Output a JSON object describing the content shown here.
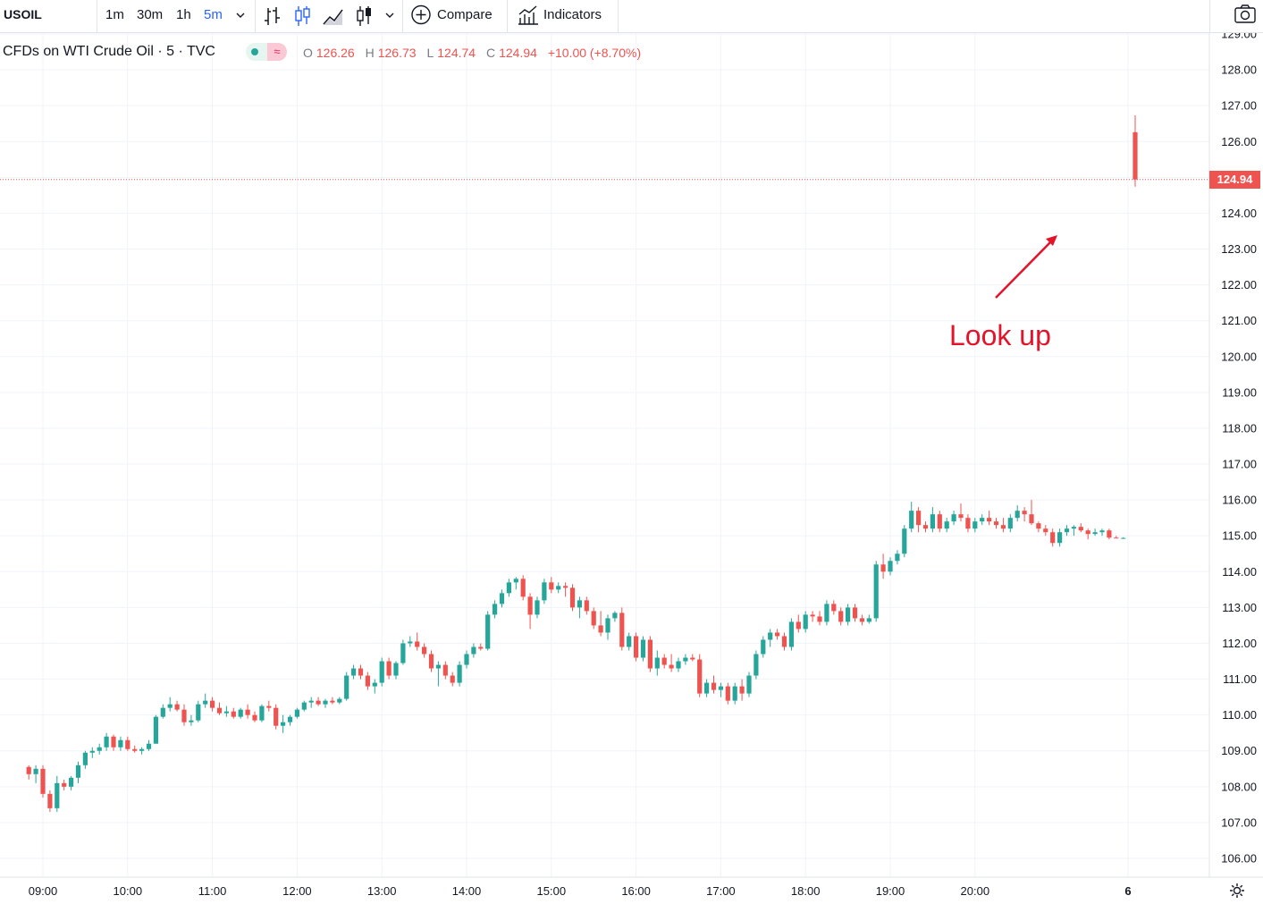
{
  "toolbar": {
    "symbol": "USOIL",
    "intervals": [
      "1m",
      "30m",
      "1h",
      "5m"
    ],
    "active_interval": "5m",
    "compare_label": "Compare",
    "indicators_label": "Indicators"
  },
  "legend": {
    "title": "CFDs on WTI Crude Oil · 5 · TVC",
    "open_label": "O",
    "open": "126.26",
    "high_label": "H",
    "high": "126.73",
    "low_label": "L",
    "low": "124.74",
    "close_label": "C",
    "close": "124.94",
    "change": "+10.00 (+8.70%)"
  },
  "annotation": {
    "text": "Look up",
    "color": "#e5132a"
  },
  "last_price": "124.94",
  "colors": {
    "up": "#26a69a",
    "down": "#ef5350",
    "accent": "#2962ff"
  },
  "price_axis_labels": [
    "129.00",
    "128.00",
    "127.00",
    "126.00",
    "124.00",
    "123.00",
    "122.00",
    "121.00",
    "120.00",
    "119.00",
    "118.00",
    "117.00",
    "116.00",
    "115.00",
    "114.00",
    "113.00",
    "112.00",
    "111.00",
    "110.00",
    "109.00",
    "108.00",
    "107.00",
    "106.00"
  ],
  "time_axis_labels": [
    "09:00",
    "10:00",
    "11:00",
    "12:00",
    "13:00",
    "14:00",
    "15:00",
    "16:00",
    "17:00",
    "18:00",
    "19:00",
    "20:00",
    "6"
  ],
  "chart_data": {
    "type": "candlestick",
    "title": "CFDs on WTI Crude Oil · 5 · TVC",
    "ylim": [
      105.5,
      129.2
    ],
    "time_labels": [
      "09:00",
      "10:00",
      "11:00",
      "12:00",
      "13:00",
      "14:00",
      "15:00",
      "16:00",
      "17:00",
      "18:00",
      "19:00",
      "20:00",
      "6"
    ],
    "points_per_hour": 12,
    "first_bar_time": "08:50",
    "series": [
      {
        "name": "USOIL",
        "ohlc": [
          [
            108.55,
            108.6,
            108.2,
            108.35
          ],
          [
            108.35,
            108.6,
            108.1,
            108.5
          ],
          [
            108.5,
            108.6,
            107.7,
            107.8
          ],
          [
            107.8,
            107.9,
            107.3,
            107.4
          ],
          [
            107.4,
            108.3,
            107.3,
            108.1
          ],
          [
            108.1,
            108.2,
            107.9,
            108.0
          ],
          [
            108.0,
            108.3,
            107.9,
            108.25
          ],
          [
            108.25,
            108.7,
            108.1,
            108.6
          ],
          [
            108.6,
            109.0,
            108.5,
            108.95
          ],
          [
            108.95,
            109.1,
            108.8,
            109.0
          ],
          [
            109.0,
            109.2,
            108.9,
            109.1
          ],
          [
            109.1,
            109.5,
            109.0,
            109.4
          ],
          [
            109.4,
            109.45,
            109.0,
            109.1
          ],
          [
            109.1,
            109.4,
            109.0,
            109.3
          ],
          [
            109.3,
            109.4,
            109.0,
            109.05
          ],
          [
            109.05,
            109.15,
            108.95,
            109.0
          ],
          [
            109.0,
            109.1,
            108.9,
            109.05
          ],
          [
            109.05,
            109.3,
            109.0,
            109.2
          ],
          [
            109.2,
            110.0,
            109.2,
            109.95
          ],
          [
            109.95,
            110.3,
            109.9,
            110.2
          ],
          [
            110.2,
            110.5,
            110.1,
            110.3
          ],
          [
            110.3,
            110.4,
            110.1,
            110.15
          ],
          [
            110.15,
            110.3,
            109.7,
            109.8
          ],
          [
            109.8,
            110.0,
            109.7,
            109.85
          ],
          [
            109.85,
            110.4,
            109.8,
            110.3
          ],
          [
            110.3,
            110.6,
            110.2,
            110.4
          ],
          [
            110.4,
            110.5,
            110.1,
            110.2
          ],
          [
            110.2,
            110.35,
            110.0,
            110.05
          ],
          [
            110.05,
            110.25,
            109.95,
            110.1
          ],
          [
            110.1,
            110.2,
            109.9,
            109.95
          ],
          [
            109.95,
            110.2,
            109.9,
            110.15
          ],
          [
            110.15,
            110.3,
            109.9,
            110.0
          ],
          [
            110.0,
            110.1,
            109.8,
            109.85
          ],
          [
            109.85,
            110.3,
            109.8,
            110.25
          ],
          [
            110.25,
            110.4,
            110.1,
            110.2
          ],
          [
            110.2,
            110.3,
            109.6,
            109.7
          ],
          [
            109.7,
            110.0,
            109.5,
            109.8
          ],
          [
            109.8,
            110.0,
            109.7,
            109.95
          ],
          [
            109.95,
            110.2,
            109.9,
            110.15
          ],
          [
            110.15,
            110.4,
            110.1,
            110.35
          ],
          [
            110.35,
            110.5,
            110.2,
            110.4
          ],
          [
            110.4,
            110.5,
            110.25,
            110.3
          ],
          [
            110.3,
            110.45,
            110.2,
            110.4
          ],
          [
            110.4,
            110.5,
            110.3,
            110.35
          ],
          [
            110.35,
            110.5,
            110.3,
            110.45
          ],
          [
            110.45,
            111.2,
            110.4,
            111.1
          ],
          [
            111.1,
            111.4,
            111.0,
            111.3
          ],
          [
            111.3,
            111.4,
            111.0,
            111.1
          ],
          [
            111.1,
            111.2,
            110.7,
            110.8
          ],
          [
            110.8,
            111.0,
            110.6,
            110.9
          ],
          [
            110.9,
            111.6,
            110.8,
            111.5
          ],
          [
            111.5,
            111.6,
            111.0,
            111.1
          ],
          [
            111.1,
            111.5,
            111.0,
            111.45
          ],
          [
            111.45,
            112.1,
            111.4,
            112.0
          ],
          [
            112.0,
            112.2,
            111.9,
            112.05
          ],
          [
            112.05,
            112.3,
            111.8,
            111.9
          ],
          [
            111.9,
            112.0,
            111.6,
            111.7
          ],
          [
            111.7,
            111.8,
            111.2,
            111.3
          ],
          [
            111.3,
            111.5,
            110.8,
            111.4
          ],
          [
            111.4,
            111.5,
            111.0,
            111.1
          ],
          [
            111.1,
            111.2,
            110.8,
            110.9
          ],
          [
            110.9,
            111.5,
            110.8,
            111.4
          ],
          [
            111.4,
            111.8,
            111.3,
            111.7
          ],
          [
            111.7,
            112.0,
            111.6,
            111.9
          ],
          [
            111.9,
            112.0,
            111.8,
            111.85
          ],
          [
            111.85,
            112.9,
            111.8,
            112.8
          ],
          [
            112.8,
            113.2,
            112.7,
            113.1
          ],
          [
            113.1,
            113.5,
            113.0,
            113.4
          ],
          [
            113.4,
            113.8,
            113.3,
            113.7
          ],
          [
            113.7,
            113.85,
            113.5,
            113.8
          ],
          [
            113.8,
            113.9,
            113.2,
            113.3
          ],
          [
            113.3,
            113.4,
            112.4,
            112.8
          ],
          [
            112.8,
            113.3,
            112.7,
            113.2
          ],
          [
            113.2,
            113.8,
            113.1,
            113.7
          ],
          [
            113.7,
            113.85,
            113.4,
            113.5
          ],
          [
            113.5,
            113.7,
            113.4,
            113.6
          ],
          [
            113.6,
            113.7,
            113.3,
            113.55
          ],
          [
            113.55,
            113.65,
            112.9,
            113.0
          ],
          [
            113.0,
            113.3,
            112.7,
            113.2
          ],
          [
            113.2,
            113.3,
            112.8,
            112.9
          ],
          [
            112.9,
            113.0,
            112.4,
            112.5
          ],
          [
            112.5,
            112.9,
            112.2,
            112.3
          ],
          [
            112.3,
            112.8,
            112.1,
            112.7
          ],
          [
            112.7,
            112.9,
            112.6,
            112.85
          ],
          [
            112.85,
            113.0,
            111.8,
            111.9
          ],
          [
            111.9,
            112.3,
            111.8,
            112.2
          ],
          [
            112.2,
            112.3,
            111.5,
            111.6
          ],
          [
            111.6,
            112.2,
            111.5,
            112.1
          ],
          [
            112.1,
            112.2,
            111.2,
            111.3
          ],
          [
            111.3,
            111.8,
            111.1,
            111.6
          ],
          [
            111.6,
            111.7,
            111.3,
            111.4
          ],
          [
            111.4,
            111.7,
            111.2,
            111.3
          ],
          [
            111.3,
            111.6,
            111.2,
            111.5
          ],
          [
            111.5,
            111.7,
            111.4,
            111.6
          ],
          [
            111.6,
            111.7,
            111.5,
            111.55
          ],
          [
            111.55,
            111.7,
            110.5,
            110.6
          ],
          [
            110.6,
            111.0,
            110.5,
            110.9
          ],
          [
            110.9,
            111.1,
            110.6,
            110.7
          ],
          [
            110.7,
            110.9,
            110.5,
            110.8
          ],
          [
            110.8,
            110.9,
            110.3,
            110.4
          ],
          [
            110.4,
            110.9,
            110.3,
            110.8
          ],
          [
            110.8,
            111.0,
            110.4,
            110.6
          ],
          [
            110.6,
            111.2,
            110.5,
            111.1
          ],
          [
            111.1,
            111.8,
            111.0,
            111.7
          ],
          [
            111.7,
            112.2,
            111.6,
            112.1
          ],
          [
            112.1,
            112.4,
            111.9,
            112.3
          ],
          [
            112.3,
            112.4,
            112.1,
            112.2
          ],
          [
            112.2,
            112.3,
            111.8,
            111.9
          ],
          [
            111.9,
            112.7,
            111.8,
            112.6
          ],
          [
            112.6,
            112.8,
            112.3,
            112.4
          ],
          [
            112.4,
            112.9,
            112.3,
            112.8
          ],
          [
            112.8,
            112.9,
            112.6,
            112.75
          ],
          [
            112.75,
            112.9,
            112.5,
            112.6
          ],
          [
            112.6,
            113.2,
            112.5,
            113.1
          ],
          [
            113.1,
            113.2,
            112.8,
            112.9
          ],
          [
            112.9,
            113.0,
            112.5,
            112.6
          ],
          [
            112.6,
            113.1,
            112.5,
            113.0
          ],
          [
            113.0,
            113.1,
            112.6,
            112.7
          ],
          [
            112.7,
            112.8,
            112.5,
            112.6
          ],
          [
            112.6,
            112.8,
            112.55,
            112.7
          ],
          [
            112.7,
            114.3,
            112.6,
            114.2
          ],
          [
            114.2,
            114.5,
            113.8,
            114.0
          ],
          [
            114.0,
            114.4,
            113.9,
            114.3
          ],
          [
            114.3,
            114.6,
            114.2,
            114.5
          ],
          [
            114.5,
            115.3,
            114.4,
            115.2
          ],
          [
            115.2,
            115.95,
            115.1,
            115.7
          ],
          [
            115.7,
            115.8,
            115.1,
            115.3
          ],
          [
            115.3,
            115.4,
            115.1,
            115.2
          ],
          [
            115.2,
            115.8,
            115.1,
            115.6
          ],
          [
            115.6,
            115.7,
            115.1,
            115.2
          ],
          [
            115.2,
            115.5,
            115.1,
            115.4
          ],
          [
            115.4,
            115.7,
            115.3,
            115.6
          ],
          [
            115.6,
            115.9,
            115.4,
            115.5
          ],
          [
            115.5,
            115.6,
            115.1,
            115.2
          ],
          [
            115.2,
            115.5,
            115.1,
            115.4
          ],
          [
            115.4,
            115.6,
            115.3,
            115.5
          ],
          [
            115.5,
            115.7,
            115.3,
            115.4
          ],
          [
            115.4,
            115.5,
            115.2,
            115.3
          ],
          [
            115.3,
            115.5,
            115.1,
            115.2
          ],
          [
            115.2,
            115.6,
            115.1,
            115.5
          ],
          [
            115.5,
            115.85,
            115.4,
            115.7
          ],
          [
            115.7,
            115.8,
            115.4,
            115.6
          ],
          [
            115.6,
            116.0,
            115.3,
            115.35
          ],
          [
            115.35,
            115.4,
            115.1,
            115.2
          ],
          [
            115.2,
            115.3,
            115.0,
            115.1
          ],
          [
            115.1,
            115.2,
            114.7,
            114.8
          ],
          [
            114.8,
            115.2,
            114.7,
            115.1
          ],
          [
            115.1,
            115.3,
            115.0,
            115.2
          ],
          [
            115.2,
            115.3,
            115.0,
            115.25
          ],
          [
            115.25,
            115.35,
            115.1,
            115.15
          ],
          [
            115.15,
            115.2,
            114.9,
            115.05
          ],
          [
            115.05,
            115.2,
            115.0,
            115.1
          ],
          [
            115.1,
            115.2,
            115.0,
            115.15
          ],
          [
            115.15,
            115.2,
            114.9,
            114.95
          ],
          [
            114.95,
            115.0,
            114.93,
            114.94
          ],
          [
            114.94,
            114.96,
            114.93,
            114.94
          ],
          [
            126.26,
            126.73,
            124.74,
            124.94
          ]
        ]
      }
    ]
  }
}
